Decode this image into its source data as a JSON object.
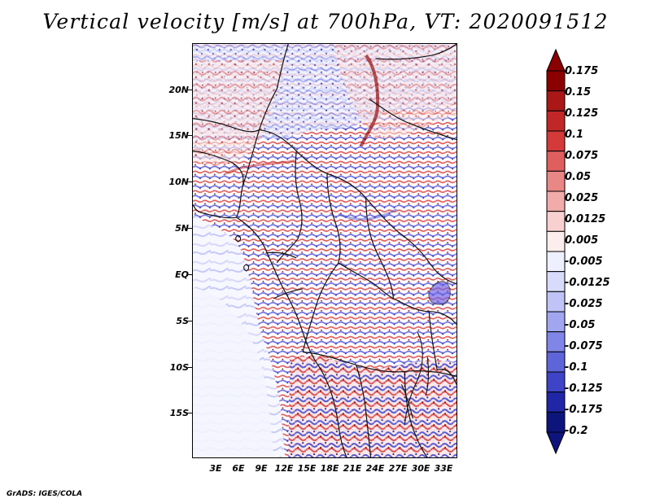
{
  "figure": {
    "title": "Vertical velocity [m/s] at 700hPa, VT: 2020091512",
    "credit": "GrADS: IGES/COLA"
  },
  "map": {
    "lat_labels": [
      "20N",
      "15N",
      "10N",
      "5N",
      "EQ",
      "5S",
      "10S",
      "15S"
    ],
    "lon_labels": [
      "3E",
      "6E",
      "9E",
      "12E",
      "15E",
      "18E",
      "21E",
      "24E",
      "27E",
      "30E",
      "33E"
    ],
    "field_description": "700hPa vertical velocity over Central and West Africa",
    "colors": {
      "strong_up": "#8b0000",
      "moderate_up": "#d84a4a",
      "light_up": "#f0c8c8",
      "neutral": "#ffffff",
      "light_down": "#d7d7fb",
      "moderate_down": "#6f6fdf",
      "strong_down": "#1d1d98",
      "coast_lines": "#111111"
    }
  },
  "legend": {
    "labels": [
      "0.175",
      "0.15",
      "0.125",
      "0.1",
      "0.075",
      "0.05",
      "0.025",
      "0.0125",
      "0.005",
      "-0.005",
      "-0.0125",
      "-0.025",
      "-0.05",
      "-0.075",
      "-0.1",
      "-0.125",
      "-0.175",
      "-0.2"
    ],
    "colors": [
      "#8b0000",
      "#a91717",
      "#c22727",
      "#d43a3a",
      "#df5f5f",
      "#e98686",
      "#f1abab",
      "#f8d0d0",
      "#fdeeee",
      "#eef0ff",
      "#d8dcfa",
      "#bfc3f6",
      "#a0a6f0",
      "#7f86e7",
      "#5e65d9",
      "#3e44c5",
      "#2026a5",
      "#0d147c"
    ]
  }
}
